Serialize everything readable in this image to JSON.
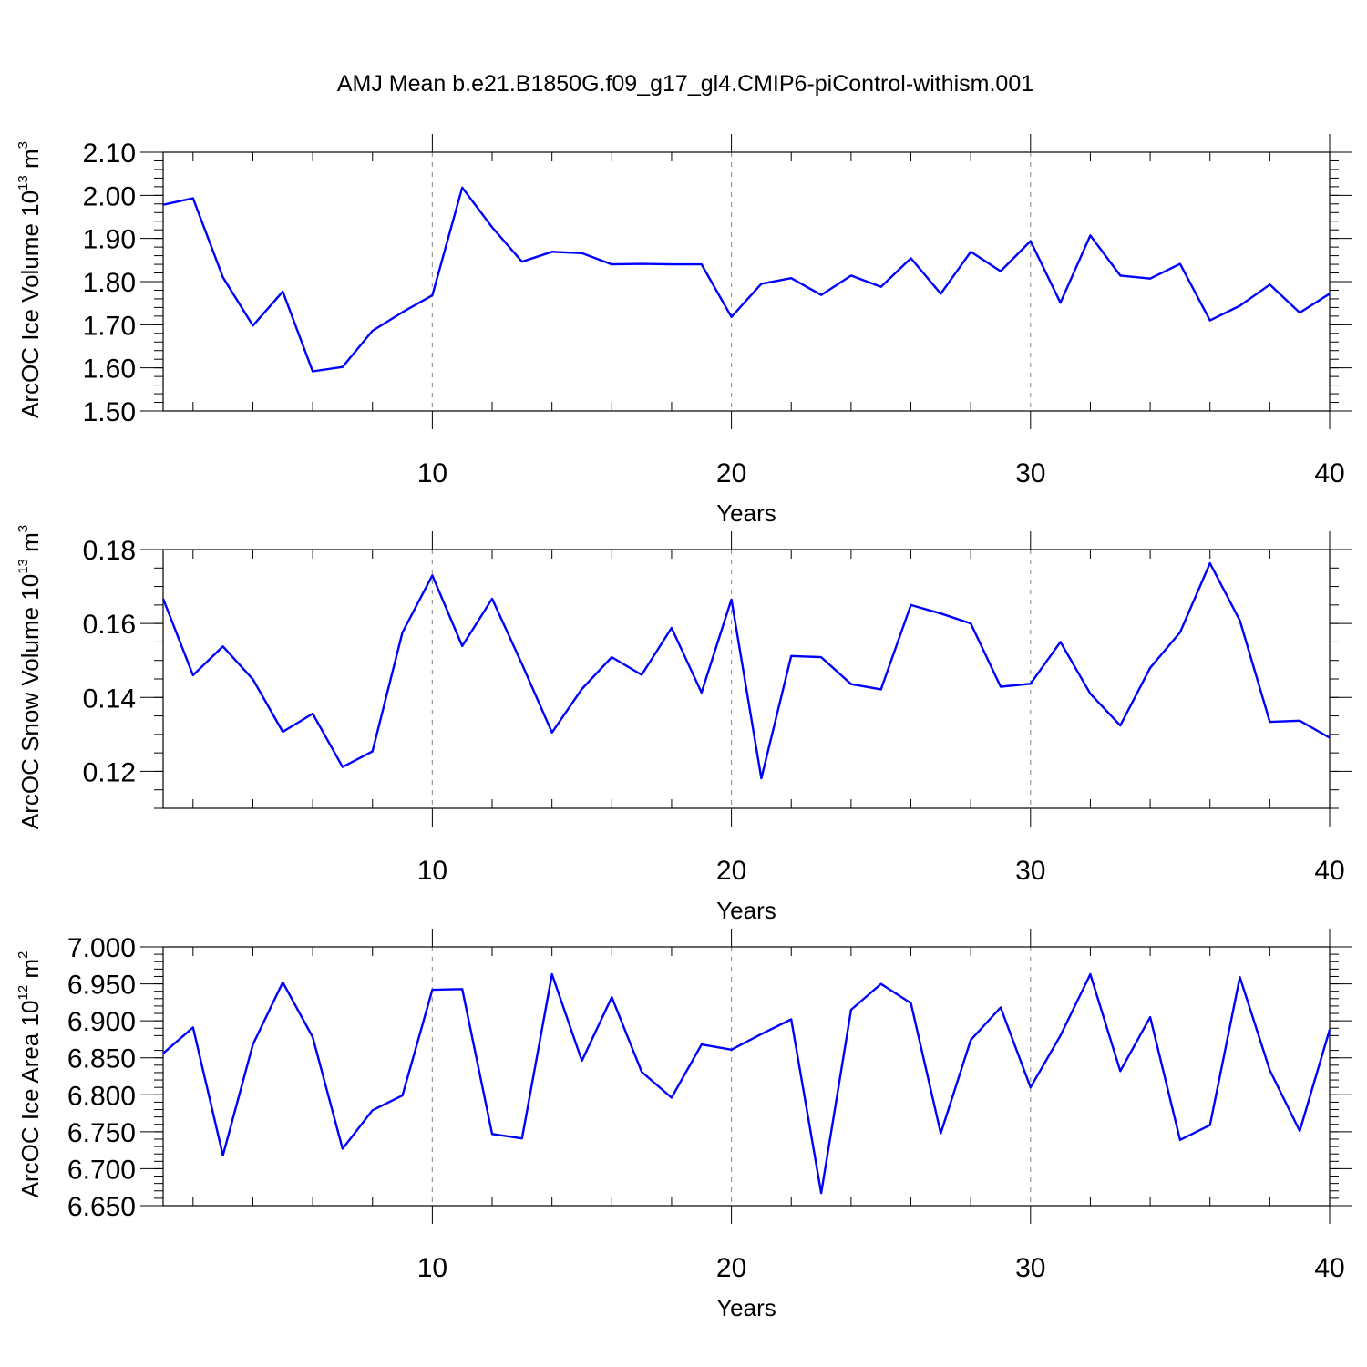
{
  "title": "AMJ Mean b.e21.B1850G.f09_g17_gl4.CMIP6-piControl-withism.001",
  "line_color": "#0000ff",
  "chart_data": [
    {
      "type": "line",
      "xlabel": "Years",
      "ylabel_main": "ArcOC Ice Volume 10",
      "ylabel_exp": "13",
      "ylabel_unit": " m",
      "ylabel_unit_exp": "3",
      "xlim": [
        1,
        40
      ],
      "ylim": [
        1.5,
        2.1
      ],
      "y_major_ticks": [
        1.5,
        1.6,
        1.7,
        1.8,
        1.9,
        2.0,
        2.1
      ],
      "y_tick_labels": [
        "1.50",
        "1.60",
        "1.70",
        "1.80",
        "1.90",
        "2.00",
        "2.10"
      ],
      "y_minor_step": 0.02,
      "x_major_ticks": [
        10,
        20,
        30,
        40
      ],
      "x_tick_labels": [
        "10",
        "20",
        "30",
        "40"
      ],
      "x_grid": [
        10,
        20,
        30
      ],
      "x": [
        1,
        2,
        3,
        4,
        5,
        6,
        7,
        8,
        9,
        10,
        11,
        12,
        13,
        14,
        15,
        16,
        17,
        18,
        19,
        20,
        21,
        22,
        23,
        24,
        25,
        26,
        27,
        28,
        29,
        30,
        31,
        32,
        33,
        34,
        35,
        36,
        37,
        38,
        39,
        40
      ],
      "values": [
        1.978,
        1.993,
        1.81,
        1.698,
        1.777,
        1.592,
        1.602,
        1.686,
        1.729,
        1.768,
        2.018,
        1.926,
        1.846,
        1.869,
        1.866,
        1.84,
        1.841,
        1.84,
        1.84,
        1.718,
        1.795,
        1.808,
        1.769,
        1.814,
        1.788,
        1.854,
        1.772,
        1.869,
        1.824,
        1.894,
        1.751,
        1.907,
        1.814,
        1.807,
        1.841,
        1.71,
        1.744,
        1.793,
        1.728,
        1.772
      ]
    },
    {
      "type": "line",
      "xlabel": "Years",
      "ylabel_main": "ArcOC Snow Volume 10",
      "ylabel_exp": "13",
      "ylabel_unit": " m",
      "ylabel_unit_exp": "3",
      "xlim": [
        1,
        40
      ],
      "ylim": [
        0.11,
        0.18
      ],
      "y_major_ticks": [
        0.12,
        0.14,
        0.16,
        0.18
      ],
      "y_tick_labels": [
        "0.12",
        "0.14",
        "0.16",
        "0.18"
      ],
      "y_minor_step": 0.005,
      "x_major_ticks": [
        10,
        20,
        30,
        40
      ],
      "x_tick_labels": [
        "10",
        "20",
        "30",
        "40"
      ],
      "x_grid": [
        10,
        20,
        30
      ],
      "x": [
        1,
        2,
        3,
        4,
        5,
        6,
        7,
        8,
        9,
        10,
        11,
        12,
        13,
        14,
        15,
        16,
        17,
        18,
        19,
        20,
        21,
        22,
        23,
        24,
        25,
        26,
        27,
        28,
        29,
        30,
        31,
        32,
        33,
        34,
        35,
        36,
        37,
        38,
        39,
        40
      ],
      "values": [
        0.1667,
        0.146,
        0.1538,
        0.1449,
        0.1307,
        0.1356,
        0.1212,
        0.1254,
        0.1576,
        0.173,
        0.1539,
        0.1667,
        0.149,
        0.1305,
        0.1423,
        0.1509,
        0.1461,
        0.1588,
        0.1413,
        0.1665,
        0.1181,
        0.1512,
        0.1509,
        0.1436,
        0.1422,
        0.165,
        0.1627,
        0.16,
        0.1429,
        0.1437,
        0.155,
        0.141,
        0.1324,
        0.148,
        0.1576,
        0.1763,
        0.1608,
        0.1334,
        0.1337,
        0.1291
      ]
    },
    {
      "type": "line",
      "xlabel": "Years",
      "ylabel_main": "ArcOC Ice Area 10",
      "ylabel_exp": "12",
      "ylabel_unit": " m",
      "ylabel_unit_exp": "2",
      "xlim": [
        1,
        40
      ],
      "ylim": [
        6.65,
        7.0
      ],
      "y_major_ticks": [
        6.65,
        6.7,
        6.75,
        6.8,
        6.85,
        6.9,
        6.95,
        7.0
      ],
      "y_tick_labels": [
        "6.650",
        "6.700",
        "6.750",
        "6.800",
        "6.850",
        "6.900",
        "6.950",
        "7.000"
      ],
      "y_minor_step": 0.01,
      "x_major_ticks": [
        10,
        20,
        30,
        40
      ],
      "x_tick_labels": [
        "10",
        "20",
        "30",
        "40"
      ],
      "x_grid": [
        10,
        20,
        30
      ],
      "x": [
        1,
        2,
        3,
        4,
        5,
        6,
        7,
        8,
        9,
        10,
        11,
        12,
        13,
        14,
        15,
        16,
        17,
        18,
        19,
        20,
        21,
        22,
        23,
        24,
        25,
        26,
        27,
        28,
        29,
        30,
        31,
        32,
        33,
        34,
        35,
        36,
        37,
        38,
        39,
        40
      ],
      "values": [
        6.856,
        6.891,
        6.718,
        6.868,
        6.952,
        6.878,
        6.727,
        6.779,
        6.799,
        6.942,
        6.943,
        6.747,
        6.741,
        6.963,
        6.846,
        6.932,
        6.831,
        6.796,
        6.868,
        6.861,
        6.882,
        6.902,
        6.667,
        6.915,
        6.95,
        6.924,
        6.748,
        6.874,
        6.918,
        6.81,
        6.88,
        6.963,
        6.832,
        6.905,
        6.739,
        6.759,
        6.959,
        6.833,
        6.751,
        6.888
      ]
    }
  ]
}
